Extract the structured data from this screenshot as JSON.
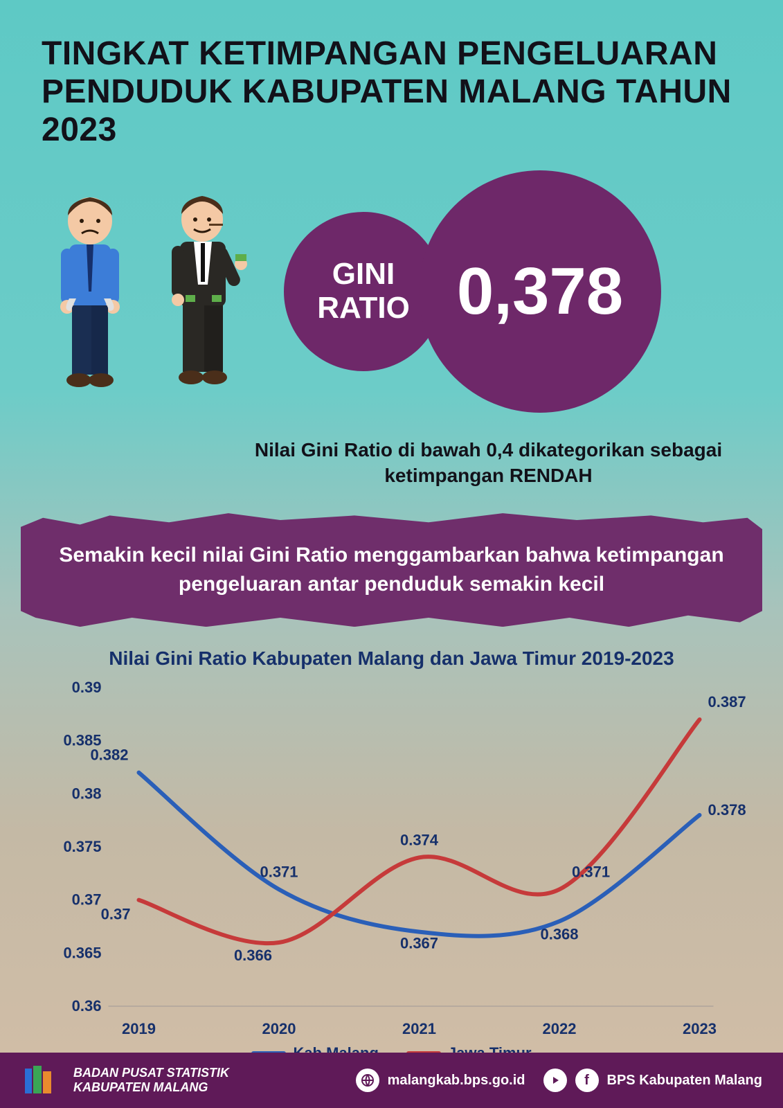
{
  "title": "TINGKAT KETIMPANGAN PENGELUARAN PENDUDUK KABUPATEN MALANG TAHUN 2023",
  "gini_label": "GINI\nRATIO",
  "gini_value": "0,378",
  "subnote": "Nilai Gini Ratio di bawah 0,4 dikategorikan sebagai ketimpangan RENDAH",
  "brush_text": "Semakin kecil nilai Gini Ratio menggambarkan bahwa ketimpangan pengeluaran antar penduduk semakin kecil",
  "colors": {
    "circle_bg": "#6e2869",
    "brush_bg": "#6f2e6b",
    "footer_bg": "#5f1a58",
    "series_kab": "#2a5fb8",
    "series_jatim": "#c63a3a",
    "axis_text": "#16306b",
    "grid": "#cfd8dc"
  },
  "chart": {
    "type": "line",
    "title": "Nilai Gini Ratio Kabupaten Malang dan Jawa Timur 2019-2023",
    "categories": [
      "2019",
      "2020",
      "2021",
      "2022",
      "2023"
    ],
    "ylim": [
      0.36,
      0.39
    ],
    "yticks": [
      0.36,
      0.365,
      0.37,
      0.375,
      0.38,
      0.385,
      0.39
    ],
    "line_width": 6,
    "series": [
      {
        "name": "Kab.Malang",
        "color": "#2a5fb8",
        "values": [
          0.382,
          0.371,
          0.367,
          0.368,
          0.378
        ],
        "label_offset": [
          [
            -15,
            -18
          ],
          [
            0,
            -18
          ],
          [
            0,
            24
          ],
          [
            0,
            26
          ],
          [
            12,
            0
          ]
        ]
      },
      {
        "name": "Jawa Timur",
        "color": "#c63a3a",
        "values": [
          0.37,
          0.366,
          0.374,
          0.371,
          0.387
        ],
        "label_offset": [
          [
            -12,
            28
          ],
          [
            -10,
            26
          ],
          [
            0,
            -18
          ],
          [
            18,
            -18
          ],
          [
            12,
            -18
          ]
        ]
      }
    ]
  },
  "legend": {
    "kab": "Kab.Malang",
    "jatim": "Jawa Timur"
  },
  "footer": {
    "org_line1": "BADAN PUSAT STATISTIK",
    "org_line2": "KABUPATEN MALANG",
    "website": "malangkab.bps.go.id",
    "social": "BPS Kabupaten Malang"
  }
}
